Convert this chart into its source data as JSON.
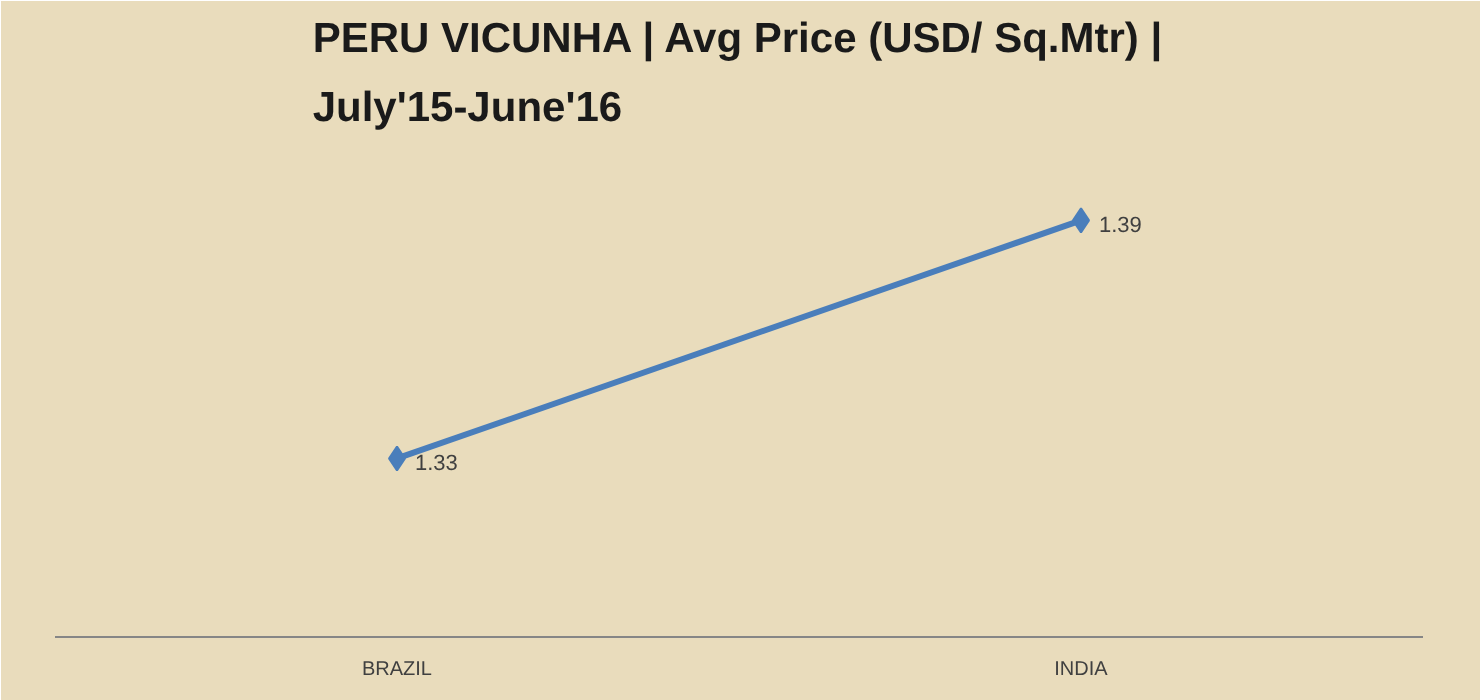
{
  "chart_data": {
    "type": "line",
    "title": "PERU VICUNHA | Avg Price (USD/ Sq.Mtr) | July'15-June'16",
    "categories": [
      "BRAZIL",
      "INDIA"
    ],
    "series": [
      {
        "color": "#4a7ebb",
        "values": [
          1.33,
          1.39
        ]
      }
    ],
    "ylim": [
      1.285,
      1.41
    ],
    "data_labels": true,
    "marker": "diamond",
    "grid": false,
    "tick_labels": "x"
  }
}
